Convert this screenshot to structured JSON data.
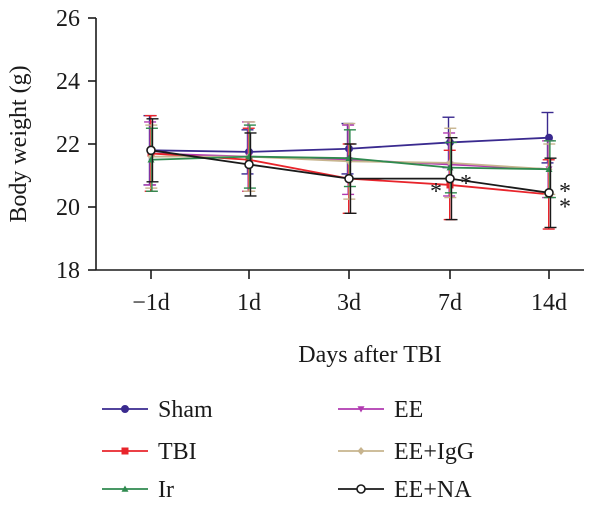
{
  "chart_data": {
    "type": "line",
    "title": "",
    "xlabel": "Days after TBI",
    "ylabel": "Body weight (g)",
    "categories": [
      "−1d",
      "1d",
      "3d",
      "7d",
      "14d"
    ],
    "yticks": [
      "18",
      "20",
      "22",
      "24",
      "26"
    ],
    "ylim": [
      18,
      26
    ],
    "grid": false,
    "legend_position": "bottom",
    "series": [
      {
        "name": "Sham",
        "color": "#3a2a8f",
        "marker": "circle-filled",
        "values": [
          21.8,
          21.75,
          21.85,
          22.05,
          22.2
        ],
        "err": [
          1.1,
          0.7,
          0.8,
          0.8,
          0.8
        ]
      },
      {
        "name": "EE",
        "color": "#b13ab0",
        "marker": "triangle-down",
        "values": [
          21.7,
          21.6,
          21.5,
          21.35,
          21.2
        ],
        "err": [
          1.0,
          1.1,
          1.1,
          1.0,
          0.9
        ]
      },
      {
        "name": "TBI",
        "color": "#e8242b",
        "marker": "square",
        "values": [
          21.7,
          21.5,
          20.9,
          20.7,
          20.4
        ],
        "err": [
          1.2,
          1.0,
          1.1,
          1.1,
          1.1
        ]
      },
      {
        "name": "EE+IgG",
        "color": "#c7b48e",
        "marker": "diamond",
        "values": [
          21.6,
          21.6,
          21.45,
          21.4,
          21.2
        ],
        "err": [
          1.0,
          1.1,
          1.2,
          1.1,
          0.8
        ]
      },
      {
        "name": "Ir",
        "color": "#2f8a4f",
        "marker": "triangle-up",
        "values": [
          21.5,
          21.6,
          21.55,
          21.25,
          21.2
        ],
        "err": [
          1.0,
          1.0,
          0.9,
          0.8,
          0.9
        ]
      },
      {
        "name": "EE+NA",
        "color": "#1a1a1a",
        "marker": "circle-open",
        "values": [
          21.8,
          21.35,
          20.9,
          20.9,
          20.45
        ],
        "err": [
          1.0,
          1.0,
          1.1,
          1.3,
          1.1
        ]
      }
    ],
    "annotations": [
      {
        "text": "*",
        "category": "7d",
        "y": 20.7,
        "side": "left"
      },
      {
        "text": "*",
        "category": "7d",
        "y": 20.95,
        "side": "right"
      },
      {
        "text": "*",
        "category": "14d",
        "y": 20.7,
        "side": "right"
      },
      {
        "text": "*",
        "category": "14d",
        "y": 20.2,
        "side": "right"
      }
    ]
  }
}
